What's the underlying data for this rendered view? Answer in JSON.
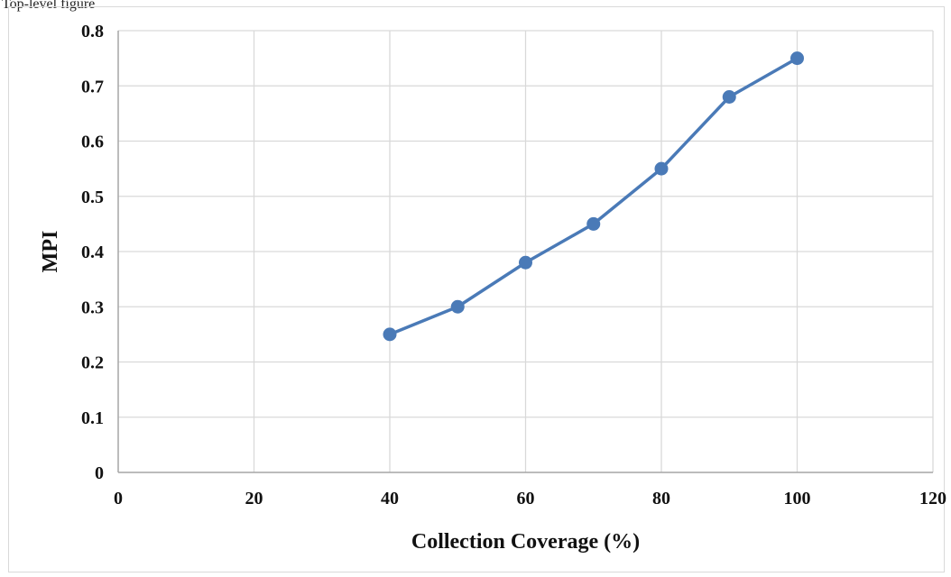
{
  "header_fragment": "Top-level figure",
  "chart_data": {
    "type": "line",
    "title": "",
    "xlabel": "Collection Coverage (%)",
    "ylabel": "MPI",
    "xlim": [
      0,
      120
    ],
    "ylim": [
      0,
      0.8
    ],
    "x_ticks": [
      "0",
      "20",
      "40",
      "60",
      "80",
      "100",
      "120"
    ],
    "y_ticks": [
      "0",
      "0.1",
      "0.2",
      "0.3",
      "0.4",
      "0.5",
      "0.6",
      "0.7",
      "0.8"
    ],
    "grid": true,
    "legend": "none",
    "series": [
      {
        "x": [
          40,
          50,
          60,
          70,
          80,
          90,
          100
        ],
        "y": [
          0.25,
          0.3,
          0.38,
          0.45,
          0.55,
          0.68,
          0.75
        ],
        "color": "#4a7ab7"
      }
    ]
  }
}
